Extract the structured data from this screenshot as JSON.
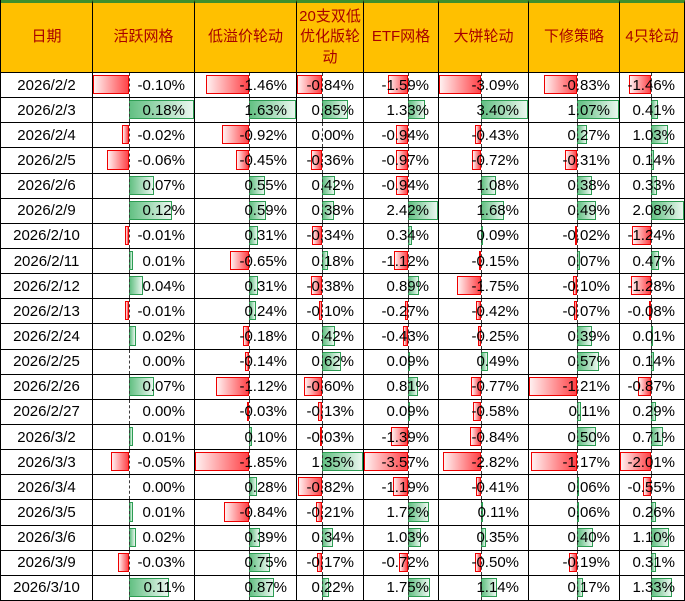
{
  "colors": {
    "header_bg": "#FFC000",
    "header_text": "#A80000",
    "top_strip": "#3F8F2C",
    "grid_line": "#000000",
    "negative_bar_border": "#EE0000",
    "negative_bar_fill": "#FF4449",
    "positive_bar_border": "#2C9C52",
    "positive_bar_fill": "#63C083",
    "axis_dash": "#3A3A3A"
  },
  "table": {
    "headers": [
      "日期",
      "活跃网格",
      "低溢价轮动",
      "20支双低优化版轮动",
      "ETF网格",
      "大饼轮动",
      "下修策略",
      "4只轮动"
    ],
    "value_suffix": "%",
    "rows": [
      {
        "date": "2026/2/2",
        "values": [
          -0.1,
          -1.46,
          -0.84,
          -1.59,
          -3.09,
          -0.83,
          -1.46
        ]
      },
      {
        "date": "2026/2/3",
        "values": [
          0.18,
          1.63,
          0.85,
          1.33,
          3.4,
          1.07,
          0.41
        ]
      },
      {
        "date": "2026/2/4",
        "values": [
          -0.02,
          -0.92,
          0.0,
          -0.94,
          -0.43,
          0.27,
          1.03
        ]
      },
      {
        "date": "2026/2/5",
        "values": [
          -0.06,
          -0.45,
          -0.36,
          -0.97,
          -0.72,
          -0.31,
          0.14
        ]
      },
      {
        "date": "2026/2/6",
        "values": [
          0.07,
          0.55,
          0.42,
          -0.94,
          1.08,
          0.38,
          0.33
        ]
      },
      {
        "date": "2026/2/9",
        "values": [
          0.12,
          0.59,
          0.38,
          2.42,
          1.68,
          0.49,
          2.08
        ]
      },
      {
        "date": "2026/2/10",
        "values": [
          -0.01,
          0.31,
          -0.34,
          0.34,
          0.09,
          -0.02,
          -1.24
        ]
      },
      {
        "date": "2026/2/11",
        "values": [
          0.01,
          -0.65,
          0.18,
          -1.12,
          -0.15,
          0.07,
          0.47
        ]
      },
      {
        "date": "2026/2/12",
        "values": [
          0.04,
          0.31,
          -0.38,
          0.89,
          -1.75,
          -0.1,
          -1.28
        ]
      },
      {
        "date": "2026/2/13",
        "values": [
          -0.01,
          0.24,
          -0.1,
          -0.27,
          -0.42,
          -0.07,
          -0.08
        ]
      },
      {
        "date": "2026/2/24",
        "values": [
          0.02,
          -0.18,
          0.42,
          -0.43,
          -0.25,
          0.39,
          0.01
        ]
      },
      {
        "date": "2026/2/25",
        "values": [
          0.0,
          -0.14,
          0.62,
          0.09,
          0.49,
          0.57,
          0.14
        ]
      },
      {
        "date": "2026/2/26",
        "values": [
          0.07,
          -1.12,
          -0.6,
          0.81,
          -0.77,
          -1.21,
          -0.87
        ]
      },
      {
        "date": "2026/2/27",
        "values": [
          0.0,
          -0.03,
          -0.13,
          0.09,
          -0.58,
          0.11,
          0.29
        ]
      },
      {
        "date": "2026/3/2",
        "values": [
          0.01,
          0.1,
          -0.03,
          -1.39,
          -0.84,
          0.5,
          0.71
        ]
      },
      {
        "date": "2026/3/3",
        "values": [
          -0.05,
          -1.85,
          1.35,
          -3.57,
          -2.82,
          -1.17,
          -2.01
        ]
      },
      {
        "date": "2026/3/4",
        "values": [
          0.0,
          0.28,
          -0.82,
          -1.19,
          -0.41,
          0.06,
          -0.55
        ]
      },
      {
        "date": "2026/3/5",
        "values": [
          0.01,
          -0.84,
          -0.21,
          1.72,
          0.11,
          0.06,
          0.26
        ]
      },
      {
        "date": "2026/3/6",
        "values": [
          0.02,
          0.39,
          0.34,
          1.03,
          0.35,
          0.4,
          1.1
        ]
      },
      {
        "date": "2026/3/9",
        "values": [
          -0.03,
          0.75,
          -0.17,
          -0.72,
          -0.5,
          -0.19,
          0.31
        ]
      },
      {
        "date": "2026/3/10",
        "values": [
          0.11,
          0.87,
          0.22,
          1.75,
          1.14,
          0.17,
          1.33
        ]
      }
    ]
  }
}
